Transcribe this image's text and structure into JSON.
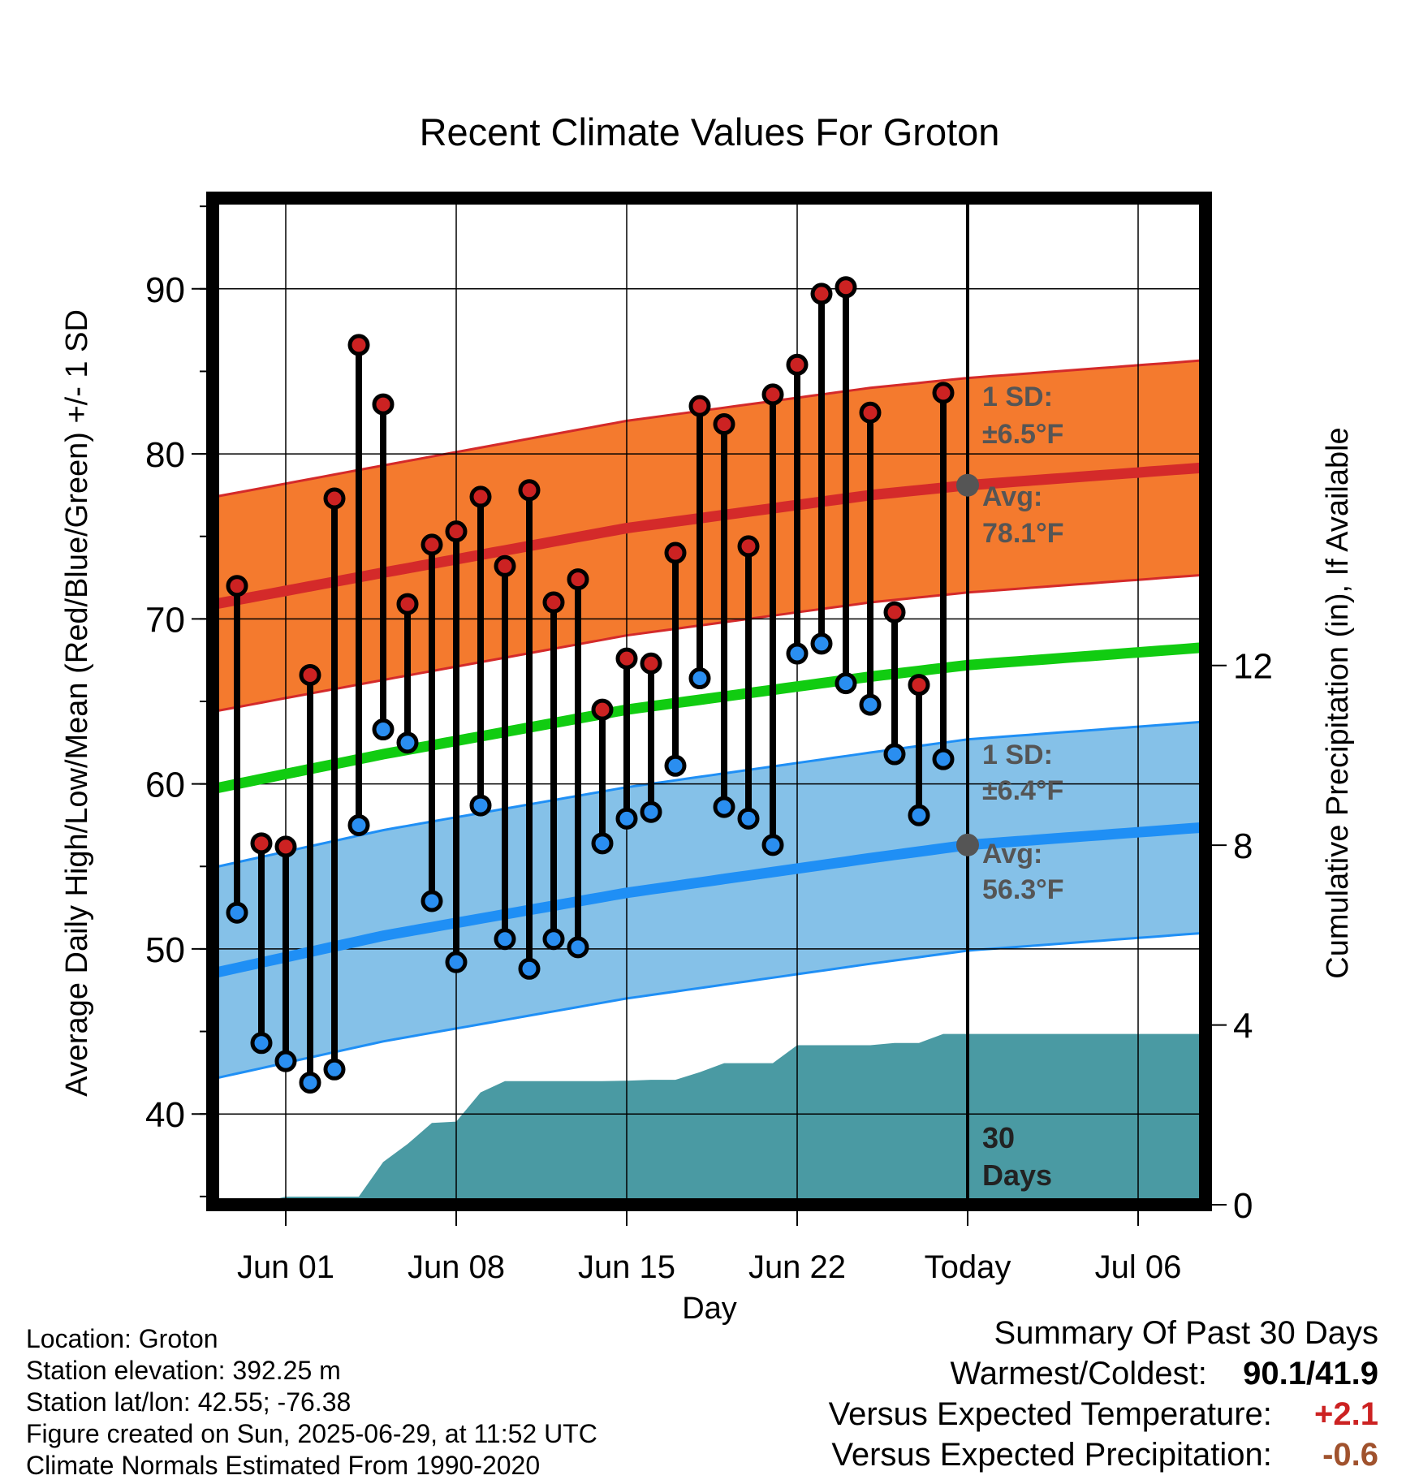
{
  "chart_data": {
    "type": "line",
    "title": "Recent Climate Values For Groton",
    "xlabel": "Day",
    "ylabel_left": "Average Daily High/Low/Mean (Red/Blue/Green) +/- 1 SD",
    "ylabel_right": "Cumulative Precipitation (in), If Available",
    "ylim_left": [
      34.5,
      95.5
    ],
    "ylim_right": [
      0,
      22.4
    ],
    "y_ticks_left": [
      40,
      50,
      60,
      70,
      80,
      90
    ],
    "y_ticks_right": [
      0,
      4,
      8,
      12
    ],
    "x_ticks": [
      {
        "label": "Jun 01",
        "day": 1
      },
      {
        "label": "Jun 08",
        "day": 8
      },
      {
        "label": "Jun 15",
        "day": 15
      },
      {
        "label": "Jun 22",
        "day": 22
      },
      {
        "label": "Today",
        "day": 29
      },
      {
        "label": "Jul 06",
        "day": 36
      }
    ],
    "today_day": 29,
    "grid": true,
    "days": [
      -1,
      0,
      1,
      2,
      3,
      4,
      5,
      6,
      7,
      8,
      9,
      10,
      11,
      12,
      13,
      14,
      15,
      16,
      17,
      18,
      19,
      20,
      21,
      22,
      23,
      24,
      25,
      26,
      27,
      28
    ],
    "highs": [
      72.0,
      56.4,
      56.2,
      66.6,
      77.3,
      86.6,
      83.0,
      70.9,
      74.5,
      75.3,
      77.4,
      73.2,
      77.8,
      71.0,
      72.4,
      64.5,
      67.6,
      67.3,
      74.0,
      82.9,
      81.8,
      74.4,
      83.6,
      85.4,
      89.7,
      90.1,
      82.5,
      70.4,
      66.0,
      83.7
    ],
    "lows": [
      52.2,
      44.3,
      43.2,
      41.9,
      42.7,
      57.5,
      63.3,
      62.5,
      52.9,
      49.2,
      58.7,
      50.6,
      48.8,
      50.6,
      50.1,
      56.4,
      57.9,
      58.3,
      61.1,
      66.4,
      58.6,
      57.9,
      56.3,
      67.9,
      68.5,
      66.1,
      64.8,
      61.8,
      58.1,
      61.5
    ],
    "normal_high": {
      "days": [
        -3,
        5,
        15,
        25,
        29,
        39
      ],
      "values": [
        70.6,
        72.8,
        75.5,
        77.5,
        78.1,
        79.2
      ]
    },
    "normal_low": {
      "days": [
        -3,
        5,
        15,
        25,
        29,
        39
      ],
      "values": [
        48.2,
        50.8,
        53.4,
        55.5,
        56.3,
        57.4
      ]
    },
    "normal_mean": {
      "days": [
        -3,
        5,
        15,
        25,
        29,
        39
      ],
      "values": [
        59.4,
        61.8,
        64.5,
        66.5,
        67.2,
        68.3
      ]
    },
    "sd_high": 6.5,
    "sd_low": 6.4,
    "cumulative_precip": {
      "days": [
        -3,
        -1,
        0,
        1,
        2,
        3,
        4,
        5,
        6,
        7,
        8,
        9,
        10,
        11,
        12,
        13,
        14,
        15,
        16,
        17,
        18,
        19,
        20,
        21,
        22,
        23,
        24,
        25,
        26,
        27,
        28,
        29,
        39
      ],
      "values": [
        0.0,
        0.0,
        0.05,
        0.18,
        0.18,
        0.18,
        0.18,
        0.95,
        1.35,
        1.82,
        1.85,
        2.5,
        2.75,
        2.75,
        2.75,
        2.75,
        2.75,
        2.76,
        2.78,
        2.78,
        2.95,
        3.15,
        3.15,
        3.15,
        3.55,
        3.55,
        3.55,
        3.55,
        3.6,
        3.6,
        3.8,
        3.8,
        3.8
      ]
    },
    "annotations": {
      "high_sd": "1 SD:",
      "high_sd_val": "±6.5°F",
      "high_avg": "Avg:",
      "high_avg_val": "78.1°F",
      "low_sd": "1 SD:",
      "low_sd_val": "±6.4°F",
      "low_avg": "Avg:",
      "low_avg_val": "56.3°F",
      "days_num": "30",
      "days_word": "Days"
    },
    "colors": {
      "high_band": "#f47a2e",
      "high_line": "#d42a2a",
      "low_band": "#85c1e8",
      "low_line": "#1f8ff5",
      "mean_line": "#11cc11",
      "precip": "#4a9aa3",
      "high_dot": "#cc2222",
      "low_dot": "#2a8ef0",
      "annotation": "#555555"
    }
  },
  "footer": {
    "location": "Location: Groton",
    "elevation": "Station elevation: 392.25 m",
    "latlon": "Station lat/lon: 42.55; -76.38",
    "created": "Figure created on Sun, 2025-06-29, at 11:52 UTC",
    "normals": "Climate Normals Estimated From 1990-2020"
  },
  "summary": {
    "title": "Summary Of Past 30 Days",
    "warmest_label": "Warmest/Coldest:",
    "warmest_value": "90.1/41.9",
    "temp_label": "Versus Expected Temperature:",
    "temp_value": "+2.1",
    "temp_color": "#cc2222",
    "precip_label": "Versus Expected Precipitation:",
    "precip_value": "-0.6",
    "precip_color": "#a0522d"
  }
}
